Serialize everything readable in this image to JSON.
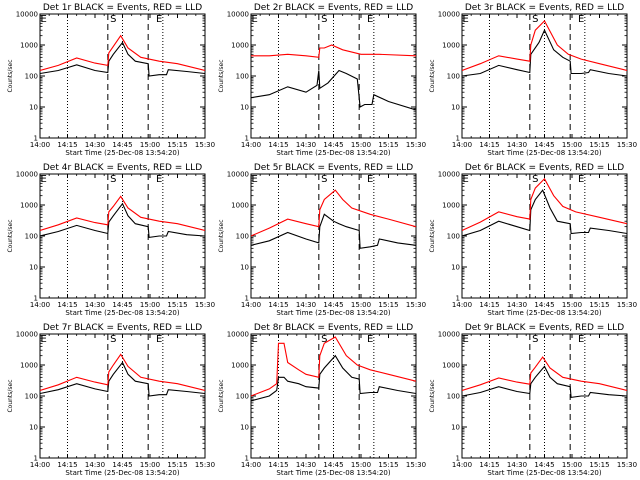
{
  "chart_data": {
    "type": "line",
    "layout": {
      "rows": 3,
      "cols": 3
    },
    "x_ticks": [
      "14:00",
      "14:15",
      "14:30",
      "14:45",
      "15:00",
      "15:15",
      "15:30"
    ],
    "xlim_minutes": [
      0,
      90
    ],
    "y_scale": "log",
    "ylim": [
      1,
      10000
    ],
    "y_ticks": [
      "1",
      "10",
      "100",
      "1000",
      "10000"
    ],
    "ylabel": "Counts/sec",
    "xlabel": "Start Time (25-Dec-08 13:54:20)",
    "series_colors": {
      "events": "#000000",
      "lld": "#ff0000"
    },
    "dashed_lines_minutes": [
      37,
      59
    ],
    "dotted_lines_minutes": [
      15,
      45,
      67
    ],
    "markers": [
      {
        "label": "E",
        "x_minutes": 2
      },
      {
        "label": "S",
        "x_minutes": 40
      },
      {
        "label": "E",
        "x_minutes": 65
      }
    ],
    "panels": [
      {
        "title": "Det 1r BLACK = Events, RED = LLD",
        "events": [
          [
            0,
            120
          ],
          [
            10,
            150
          ],
          [
            20,
            230
          ],
          [
            30,
            150
          ],
          [
            37,
            130
          ],
          [
            37.5,
            300
          ],
          [
            40,
            500
          ],
          [
            45,
            1200
          ],
          [
            48,
            500
          ],
          [
            52,
            300
          ],
          [
            59,
            250
          ],
          [
            59.5,
            100
          ],
          [
            65,
            110
          ],
          [
            69,
            110
          ],
          [
            70,
            160
          ],
          [
            80,
            140
          ],
          [
            90,
            120
          ]
        ],
        "lld": [
          [
            0,
            150
          ],
          [
            10,
            220
          ],
          [
            20,
            380
          ],
          [
            30,
            260
          ],
          [
            37,
            220
          ],
          [
            37.5,
            550
          ],
          [
            40,
            900
          ],
          [
            44,
            2000
          ],
          [
            48,
            800
          ],
          [
            55,
            400
          ],
          [
            65,
            300
          ],
          [
            75,
            250
          ],
          [
            90,
            150
          ]
        ]
      },
      {
        "title": "Det 2r BLACK = Events, RED = LLD",
        "events": [
          [
            0,
            20
          ],
          [
            10,
            25
          ],
          [
            20,
            45
          ],
          [
            30,
            30
          ],
          [
            36,
            50
          ],
          [
            37,
            150
          ],
          [
            37.5,
            40
          ],
          [
            42,
            60
          ],
          [
            48,
            150
          ],
          [
            52,
            120
          ],
          [
            58,
            80
          ],
          [
            59.5,
            10
          ],
          [
            62,
            12
          ],
          [
            66,
            12
          ],
          [
            67,
            25
          ],
          [
            75,
            15
          ],
          [
            90,
            8
          ]
        ],
        "lld": [
          [
            0,
            450
          ],
          [
            10,
            450
          ],
          [
            20,
            500
          ],
          [
            30,
            450
          ],
          [
            37,
            400
          ],
          [
            37.5,
            800
          ],
          [
            40,
            800
          ],
          [
            44,
            1000
          ],
          [
            50,
            700
          ],
          [
            60,
            500
          ],
          [
            70,
            500
          ],
          [
            90,
            450
          ]
        ]
      },
      {
        "title": "Det 3r BLACK = Events, RED = LLD",
        "events": [
          [
            0,
            100
          ],
          [
            10,
            120
          ],
          [
            20,
            220
          ],
          [
            30,
            160
          ],
          [
            37,
            130
          ],
          [
            37.5,
            500
          ],
          [
            42,
            1200
          ],
          [
            45,
            3000
          ],
          [
            50,
            700
          ],
          [
            55,
            400
          ],
          [
            59,
            300
          ],
          [
            59.5,
            120
          ],
          [
            65,
            120
          ],
          [
            69,
            130
          ],
          [
            70,
            160
          ],
          [
            80,
            120
          ],
          [
            90,
            100
          ]
        ],
        "lld": [
          [
            0,
            150
          ],
          [
            10,
            250
          ],
          [
            20,
            450
          ],
          [
            30,
            350
          ],
          [
            37,
            300
          ],
          [
            37.5,
            1000
          ],
          [
            40,
            3000
          ],
          [
            45,
            6000
          ],
          [
            52,
            1000
          ],
          [
            58,
            500
          ],
          [
            65,
            350
          ],
          [
            75,
            250
          ],
          [
            90,
            150
          ]
        ]
      },
      {
        "title": "Det 4r BLACK = Events, RED = LLD",
        "events": [
          [
            0,
            100
          ],
          [
            10,
            140
          ],
          [
            20,
            220
          ],
          [
            30,
            150
          ],
          [
            37,
            120
          ],
          [
            37.5,
            280
          ],
          [
            40,
            450
          ],
          [
            45,
            1100
          ],
          [
            48,
            450
          ],
          [
            52,
            250
          ],
          [
            59,
            200
          ],
          [
            59.5,
            90
          ],
          [
            65,
            100
          ],
          [
            69,
            100
          ],
          [
            70,
            140
          ],
          [
            80,
            110
          ],
          [
            90,
            100
          ]
        ],
        "lld": [
          [
            0,
            150
          ],
          [
            10,
            230
          ],
          [
            20,
            380
          ],
          [
            30,
            270
          ],
          [
            37,
            230
          ],
          [
            37.5,
            600
          ],
          [
            40,
            900
          ],
          [
            44,
            1900
          ],
          [
            48,
            800
          ],
          [
            55,
            400
          ],
          [
            65,
            300
          ],
          [
            75,
            250
          ],
          [
            90,
            150
          ]
        ]
      },
      {
        "title": "Det 5r BLACK = Events, RED = LLD",
        "events": [
          [
            0,
            50
          ],
          [
            10,
            70
          ],
          [
            20,
            130
          ],
          [
            30,
            80
          ],
          [
            37,
            60
          ],
          [
            37.5,
            200
          ],
          [
            40,
            500
          ],
          [
            45,
            300
          ],
          [
            48,
            250
          ],
          [
            52,
            200
          ],
          [
            59,
            150
          ],
          [
            59.5,
            40
          ],
          [
            65,
            45
          ],
          [
            69,
            50
          ],
          [
            70,
            80
          ],
          [
            80,
            60
          ],
          [
            90,
            50
          ]
        ],
        "lld": [
          [
            0,
            100
          ],
          [
            10,
            180
          ],
          [
            20,
            350
          ],
          [
            30,
            250
          ],
          [
            37,
            200
          ],
          [
            37.5,
            700
          ],
          [
            40,
            1500
          ],
          [
            46,
            3000
          ],
          [
            50,
            1500
          ],
          [
            55,
            800
          ],
          [
            65,
            500
          ],
          [
            75,
            350
          ],
          [
            90,
            200
          ]
        ]
      },
      {
        "title": "Det 6r BLACK = Events, RED = LLD",
        "events": [
          [
            0,
            100
          ],
          [
            10,
            150
          ],
          [
            20,
            300
          ],
          [
            30,
            200
          ],
          [
            37,
            150
          ],
          [
            37.5,
            700
          ],
          [
            40,
            1500
          ],
          [
            44,
            3000
          ],
          [
            48,
            800
          ],
          [
            52,
            300
          ],
          [
            59,
            250
          ],
          [
            59.5,
            120
          ],
          [
            65,
            130
          ],
          [
            69,
            130
          ],
          [
            70,
            180
          ],
          [
            80,
            150
          ],
          [
            90,
            120
          ]
        ],
        "lld": [
          [
            0,
            150
          ],
          [
            10,
            280
          ],
          [
            20,
            600
          ],
          [
            30,
            420
          ],
          [
            37,
            350
          ],
          [
            37.5,
            1500
          ],
          [
            40,
            3500
          ],
          [
            45,
            7000
          ],
          [
            50,
            2000
          ],
          [
            55,
            900
          ],
          [
            62,
            600
          ],
          [
            75,
            400
          ],
          [
            90,
            250
          ]
        ]
      },
      {
        "title": "Det 7r BLACK = Events, RED = LLD",
        "events": [
          [
            0,
            120
          ],
          [
            10,
            160
          ],
          [
            20,
            250
          ],
          [
            30,
            170
          ],
          [
            37,
            140
          ],
          [
            37.5,
            300
          ],
          [
            40,
            500
          ],
          [
            45,
            1200
          ],
          [
            48,
            500
          ],
          [
            52,
            300
          ],
          [
            59,
            250
          ],
          [
            59.5,
            100
          ],
          [
            65,
            110
          ],
          [
            69,
            110
          ],
          [
            70,
            160
          ],
          [
            80,
            140
          ],
          [
            90,
            120
          ]
        ],
        "lld": [
          [
            0,
            150
          ],
          [
            10,
            230
          ],
          [
            20,
            400
          ],
          [
            30,
            280
          ],
          [
            37,
            230
          ],
          [
            37.5,
            600
          ],
          [
            40,
            1000
          ],
          [
            44,
            2200
          ],
          [
            48,
            900
          ],
          [
            55,
            400
          ],
          [
            65,
            300
          ],
          [
            75,
            250
          ],
          [
            90,
            150
          ]
        ]
      },
      {
        "title": "Det 8r BLACK = Events, RED = LLD",
        "events": [
          [
            0,
            70
          ],
          [
            10,
            100
          ],
          [
            14,
            150
          ],
          [
            15,
            400
          ],
          [
            18,
            400
          ],
          [
            20,
            300
          ],
          [
            26,
            250
          ],
          [
            30,
            200
          ],
          [
            37,
            180
          ],
          [
            37.5,
            500
          ],
          [
            40,
            800
          ],
          [
            46,
            2000
          ],
          [
            50,
            800
          ],
          [
            55,
            400
          ],
          [
            59,
            350
          ],
          [
            59.5,
            120
          ],
          [
            65,
            130
          ],
          [
            69,
            130
          ],
          [
            70,
            200
          ],
          [
            80,
            150
          ],
          [
            90,
            120
          ]
        ],
        "lld": [
          [
            0,
            100
          ],
          [
            10,
            170
          ],
          [
            14,
            250
          ],
          [
            15,
            5000
          ],
          [
            18,
            5000
          ],
          [
            20,
            1200
          ],
          [
            26,
            700
          ],
          [
            30,
            500
          ],
          [
            37,
            400
          ],
          [
            37.5,
            2000
          ],
          [
            40,
            5000
          ],
          [
            46,
            8000
          ],
          [
            52,
            2000
          ],
          [
            58,
            1000
          ],
          [
            65,
            700
          ],
          [
            75,
            500
          ],
          [
            90,
            300
          ]
        ]
      },
      {
        "title": "Det 9r BLACK = Events, RED = LLD",
        "events": [
          [
            0,
            100
          ],
          [
            10,
            130
          ],
          [
            20,
            200
          ],
          [
            30,
            140
          ],
          [
            37,
            120
          ],
          [
            37.5,
            250
          ],
          [
            40,
            400
          ],
          [
            45,
            900
          ],
          [
            48,
            400
          ],
          [
            52,
            250
          ],
          [
            59,
            200
          ],
          [
            59.5,
            90
          ],
          [
            65,
            100
          ],
          [
            69,
            100
          ],
          [
            70,
            130
          ],
          [
            80,
            110
          ],
          [
            90,
            100
          ]
        ],
        "lld": [
          [
            0,
            150
          ],
          [
            10,
            230
          ],
          [
            20,
            380
          ],
          [
            30,
            280
          ],
          [
            37,
            240
          ],
          [
            37.5,
            550
          ],
          [
            40,
            850
          ],
          [
            44,
            1800
          ],
          [
            48,
            800
          ],
          [
            55,
            400
          ],
          [
            65,
            300
          ],
          [
            75,
            250
          ],
          [
            90,
            150
          ]
        ]
      }
    ]
  }
}
